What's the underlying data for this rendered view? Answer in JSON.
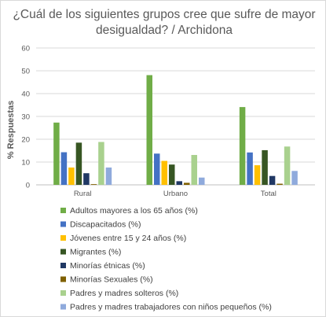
{
  "chart_data": {
    "type": "bar",
    "title_lines": [
      "¿Cuál de los siguientes grupos cree que sufre de mayor",
      "desigualdad? / Archidona"
    ],
    "xlabel": "",
    "ylabel": "% Respuestas",
    "ylim": [
      0,
      60
    ],
    "yticks": [
      "0",
      "10",
      "20",
      "30",
      "40",
      "50",
      "60"
    ],
    "categories": [
      "Rural",
      "Urbano",
      "Total"
    ],
    "grid": "horizontal",
    "legend_position": "bottom",
    "series": [
      {
        "name": "Adultos mayores a los 65 años (%)",
        "color": "#70ad47",
        "values": [
          27.3,
          48.1,
          34.1
        ]
      },
      {
        "name": "Discapacitados (%)",
        "color": "#4472c4",
        "values": [
          14.3,
          13.7,
          14.2
        ]
      },
      {
        "name": "Jóvenes entre 15 y 24 años (%)",
        "color": "#ffc000",
        "values": [
          7.6,
          10.5,
          8.6
        ]
      },
      {
        "name": "Migrantes (%)",
        "color": "#375623",
        "values": [
          18.5,
          8.9,
          15.2
        ]
      },
      {
        "name": "Minorías étnicas (%)",
        "color": "#203864",
        "values": [
          5.1,
          1.6,
          3.9
        ]
      },
      {
        "name": "Minorías Sexuales (%)",
        "color": "#7f6000",
        "values": [
          0.3,
          0.9,
          0.5
        ]
      },
      {
        "name": "Padres y madres solteros (%)",
        "color": "#a9d18e",
        "values": [
          18.8,
          13.1,
          16.8
        ]
      },
      {
        "name": "Padres y madres trabajadores con niños pequeños (%)",
        "color": "#8faadc",
        "values": [
          7.6,
          3.2,
          6.1
        ]
      }
    ]
  }
}
